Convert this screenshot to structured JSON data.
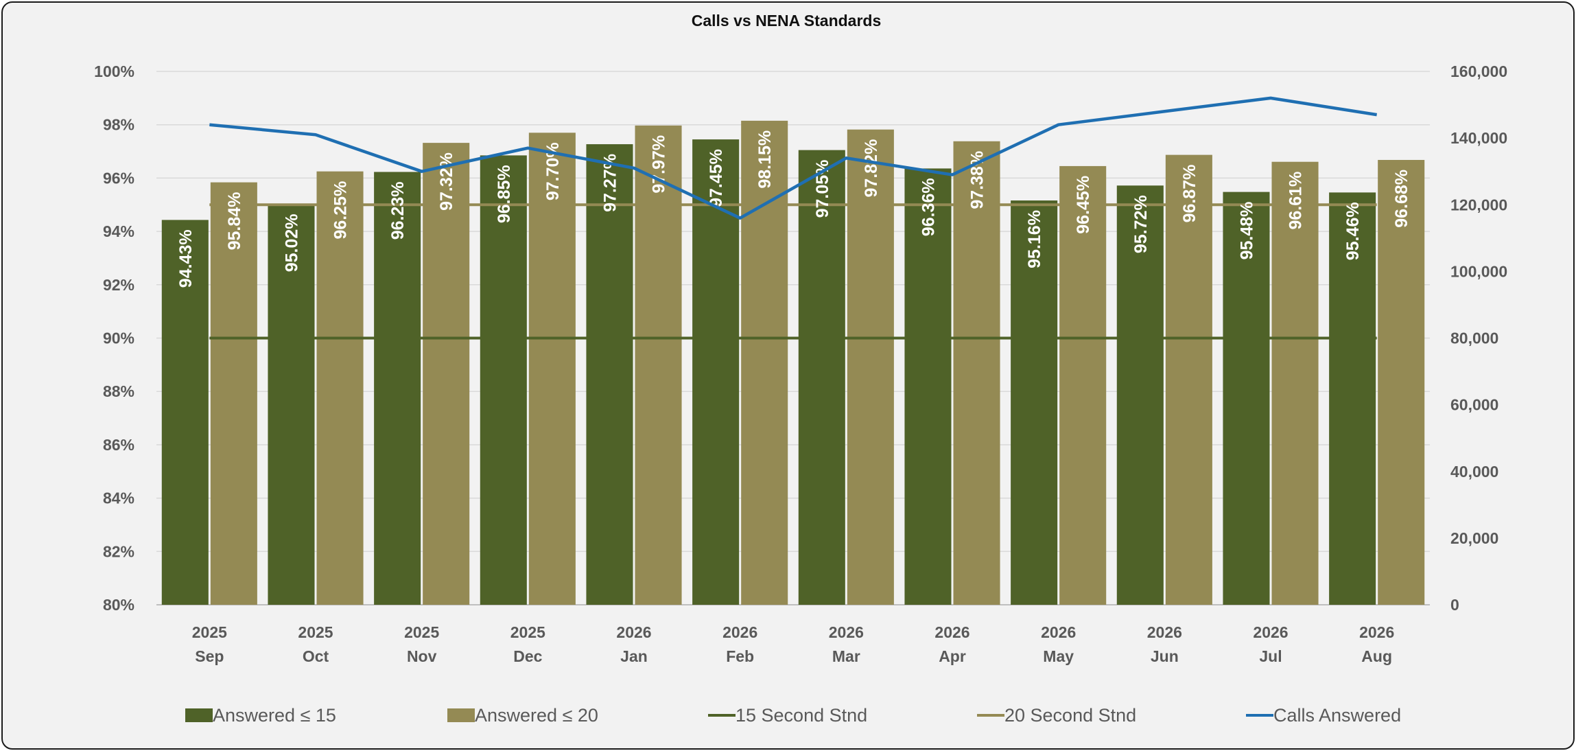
{
  "chart_data": {
    "type": "bar",
    "title": "Calls vs NENA Standards",
    "categories": [
      [
        "2025",
        "Sep"
      ],
      [
        "2025",
        "Oct"
      ],
      [
        "2025",
        "Nov"
      ],
      [
        "2025",
        "Dec"
      ],
      [
        "2026",
        "Jan"
      ],
      [
        "2026",
        "Feb"
      ],
      [
        "2026",
        "Mar"
      ],
      [
        "2026",
        "Apr"
      ],
      [
        "2026",
        "May"
      ],
      [
        "2026",
        "Jun"
      ],
      [
        "2026",
        "Jul"
      ],
      [
        "2026",
        "Aug"
      ]
    ],
    "series": [
      {
        "name": "Answered ≤ 15",
        "kind": "bar",
        "axis": "left",
        "color": "#4f6228",
        "values": [
          94.43,
          95.02,
          96.23,
          96.85,
          97.27,
          97.45,
          97.05,
          96.36,
          95.16,
          95.72,
          95.48,
          95.46
        ],
        "labels": [
          "94.43%",
          "95.02%",
          "96.23%",
          "96.85%",
          "97.27%",
          "97.45%",
          "97.05%",
          "96.36%",
          "95.16%",
          "95.72%",
          "95.48%",
          "95.46%"
        ]
      },
      {
        "name": "Answered ≤ 20",
        "kind": "bar",
        "axis": "left",
        "color": "#948a54",
        "values": [
          95.84,
          96.25,
          97.32,
          97.7,
          97.97,
          98.15,
          97.82,
          97.38,
          96.45,
          96.87,
          96.61,
          96.68
        ],
        "labels": [
          "95.84%",
          "96.25%",
          "97.32%",
          "97.70%",
          "97.97%",
          "98.15%",
          "97.82%",
          "97.38%",
          "96.45%",
          "96.87%",
          "96.61%",
          "96.68%"
        ]
      },
      {
        "name": "15 Second Stnd",
        "kind": "line",
        "axis": "left",
        "color": "#4f6228",
        "values": [
          90,
          90,
          90,
          90,
          90,
          90,
          90,
          90,
          90,
          90,
          90,
          90
        ]
      },
      {
        "name": "20 Second Stnd",
        "kind": "line",
        "axis": "left",
        "color": "#948a54",
        "values": [
          95,
          95,
          95,
          95,
          95,
          95,
          95,
          95,
          95,
          95,
          95,
          95
        ]
      },
      {
        "name": "Calls Answered",
        "kind": "line",
        "axis": "right",
        "color": "#1f6fb2",
        "values": [
          144000,
          141000,
          130000,
          137000,
          131000,
          116000,
          134000,
          129000,
          144000,
          148000,
          152000,
          147000
        ]
      }
    ],
    "y_left": {
      "ylim": [
        80,
        100
      ],
      "ticks": [
        "80%",
        "82%",
        "84%",
        "86%",
        "88%",
        "90%",
        "92%",
        "94%",
        "96%",
        "98%",
        "100%"
      ]
    },
    "y_right": {
      "ylim": [
        0,
        160000
      ],
      "ticks": [
        "0",
        "20,000",
        "40,000",
        "60,000",
        "80,000",
        "100,000",
        "120,000",
        "140,000",
        "160,000"
      ]
    },
    "grid": true,
    "legend_position": "bottom"
  }
}
